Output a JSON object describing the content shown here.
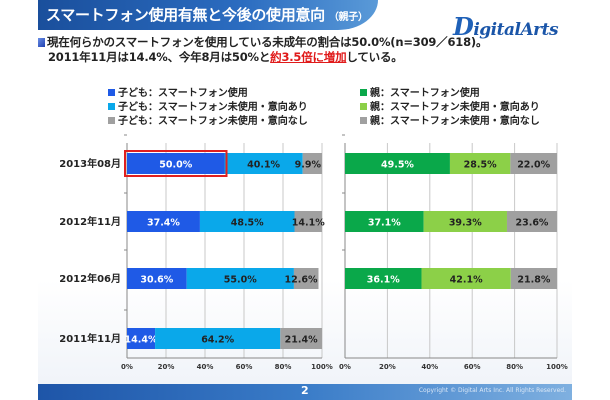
{
  "header": {
    "title": "スマートフォン使用有無と今後の使用意向",
    "subtitle": "（親子）",
    "logo_text": "DigitalArts",
    "logo_initial": "D",
    "logo_rest": "igitalArts"
  },
  "summary": {
    "line1": "現在何らかのスマートフォンを使用している未成年の割合は50.0%(n=309／618)。",
    "line2_prefix": "2011年11月は14.4%、今年8月は50%と",
    "line2_highlight": "約3.5倍に増加",
    "line2_suffix": "している。"
  },
  "footer": {
    "page_number": "2",
    "copyright": "Copyright © Digital Arts Inc. All Rights Reserved."
  },
  "colors": {
    "child_use": "#1f5ae6",
    "child_intend": "#0aa8ea",
    "child_none": "#a0a0a0",
    "parent_use": "#0aa84a",
    "parent_intend": "#8cd048",
    "parent_none": "#a0a0a0",
    "highlight_border": "#e02020"
  },
  "chart_data": [
    {
      "type": "bar",
      "orientation": "horizontal-stacked-100",
      "title": "",
      "categories": [
        "2013年08月",
        "2012年11月",
        "2012年06月",
        "2011年11月"
      ],
      "series": [
        {
          "name": "子ども：スマートフォン使用",
          "values": [
            50.0,
            37.4,
            30.6,
            14.4
          ]
        },
        {
          "name": "子ども：スマートフォン未使用・意向あり",
          "values": [
            40.1,
            48.5,
            55.0,
            64.2
          ]
        },
        {
          "name": "子ども：スマートフォン未使用・意向なし",
          "values": [
            9.9,
            14.1,
            12.6,
            21.4
          ]
        }
      ],
      "data_labels": [
        [
          "50.0%",
          "37.4%",
          "30.6%",
          "14.4%"
        ],
        [
          "40.1%",
          "48.5%",
          "55.0%",
          "64.2%"
        ],
        [
          "9.9%",
          "14.1%",
          "12.6%",
          "21.4%"
        ]
      ],
      "xlim": [
        0,
        100
      ],
      "xticks": [
        "0%",
        "20%",
        "40%",
        "60%",
        "80%",
        "100%"
      ],
      "grid": true,
      "legend": "top",
      "highlighted": {
        "category": "2013年08月",
        "series": "子ども：スマートフォン使用"
      }
    },
    {
      "type": "bar",
      "orientation": "horizontal-stacked-100",
      "title": "",
      "categories": [
        "2013年08月",
        "2012年11月",
        "2012年06月"
      ],
      "series": [
        {
          "name": "親：スマートフォン使用",
          "values": [
            49.5,
            37.1,
            36.1
          ]
        },
        {
          "name": "親：スマートフォン未使用・意向あり",
          "values": [
            28.5,
            39.3,
            42.1
          ]
        },
        {
          "name": "親：スマートフォン未使用・意向なし",
          "values": [
            22.0,
            23.6,
            21.8
          ]
        }
      ],
      "data_labels": [
        [
          "49.5%",
          "37.1%",
          "36.1%"
        ],
        [
          "28.5%",
          "39.3%",
          "42.1%"
        ],
        [
          "22.0%",
          "23.6%",
          "21.8%"
        ]
      ],
      "xlim": [
        0,
        100
      ],
      "xticks": [
        "0%",
        "20%",
        "40%",
        "60%",
        "80%",
        "100%"
      ],
      "grid": true,
      "legend": "top"
    }
  ]
}
